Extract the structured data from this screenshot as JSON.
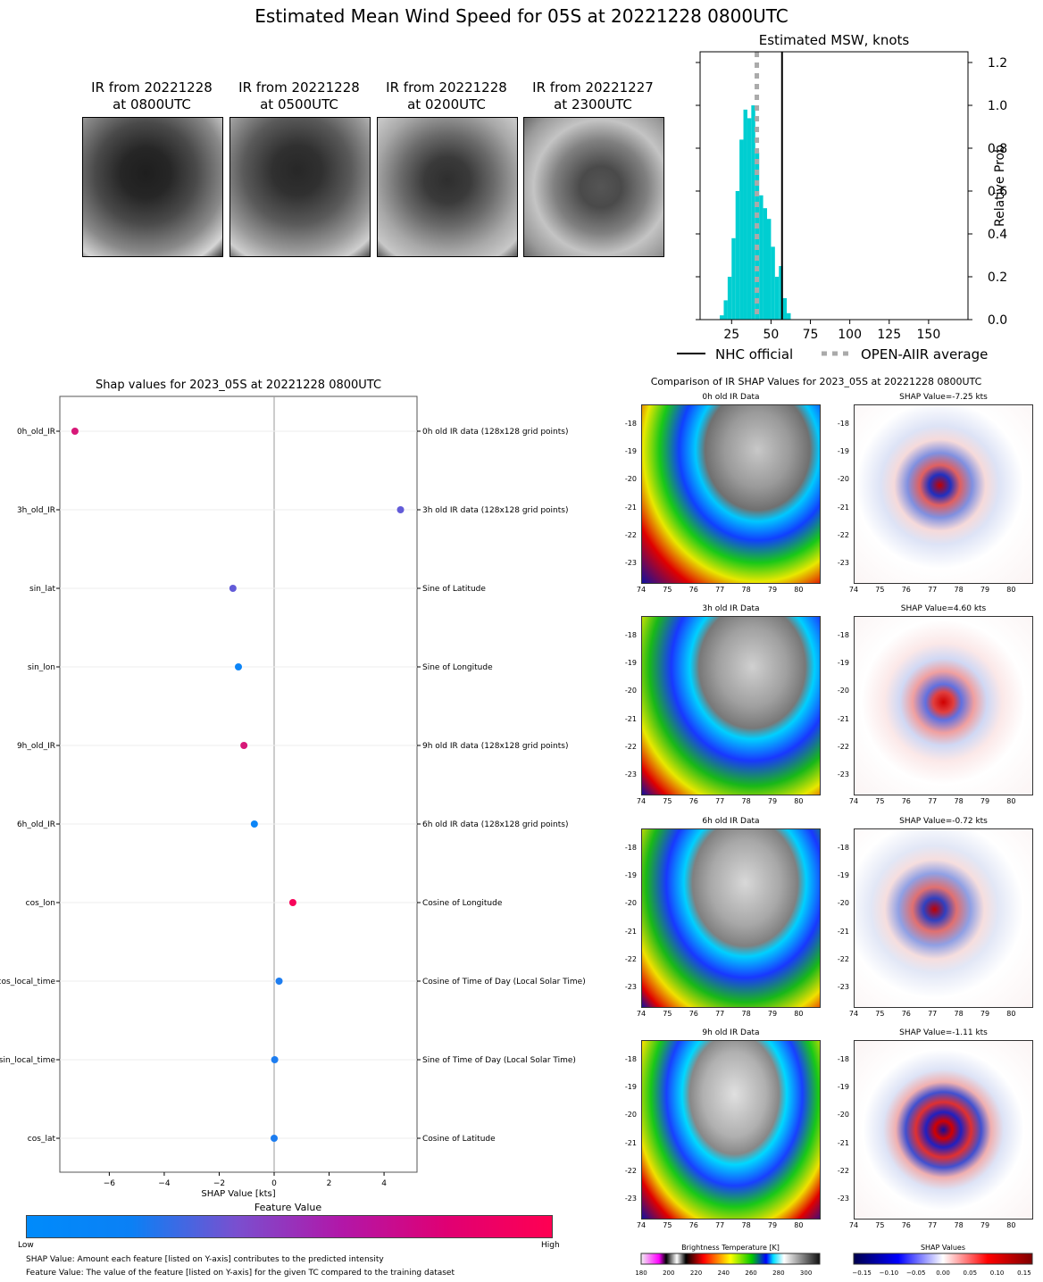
{
  "page_title": "Estimated Mean Wind Speed for 05S at 20221228 0800UTC",
  "ir_captions": [
    "IR from 20221228\nat 0800UTC",
    "IR from 20221228\nat 0500UTC",
    "IR from 20221228\nat 0200UTC",
    "IR from 20221227\nat 2300UTC"
  ],
  "legend": {
    "nhc": "NHC official",
    "openaiir": "OPEN-AIIR average"
  },
  "colorbar": {
    "title": "Feature Value",
    "low": "Low",
    "high": "High"
  },
  "notes": [
    "SHAP Value: Amount each feature [listed on Y-axis] contributes to the predicted intensity",
    "Feature Value: The value of the feature [listed on Y-axis] for the given TC compared to the training dataset"
  ],
  "comparison_title": "Comparison of IR SHAP Values for 2023_05S at 20221228 0800UTC",
  "ir_rows": [
    {
      "left_title": "0h old IR Data",
      "right_title": "SHAP Value=-7.25 kts"
    },
    {
      "left_title": "3h old IR Data",
      "right_title": "SHAP Value=4.60 kts"
    },
    {
      "left_title": "6h old IR Data",
      "right_title": "SHAP Value=-0.72 kts"
    },
    {
      "left_title": "9h old IR Data",
      "right_title": "SHAP Value=-1.11 kts"
    }
  ],
  "map_axes": {
    "x_ticks": [
      "74",
      "75",
      "76",
      "77",
      "78",
      "79",
      "80"
    ],
    "y_ticks": [
      "-18",
      "-19",
      "-20",
      "-21",
      "-22",
      "-23"
    ]
  },
  "bt_colorbar": {
    "title": "Brightness Temperature [K]",
    "ticks": [
      "180",
      "200",
      "220",
      "240",
      "260",
      "280",
      "300"
    ]
  },
  "shap_colorbar": {
    "title": "SHAP Values",
    "ticks": [
      "−0.15",
      "−0.10",
      "−0.05",
      "0.00",
      "0.05",
      "0.10",
      "0.15"
    ]
  },
  "chart_data": [
    {
      "type": "bar",
      "title": "Estimated MSW, knots",
      "xlabel": "",
      "ylabel": "Relative Prob",
      "xlim": [
        5,
        175
      ],
      "ylim": [
        0,
        1.25
      ],
      "x_ticks": [
        25,
        50,
        75,
        100,
        125,
        150
      ],
      "y_ticks": [
        0.0,
        0.2,
        0.4,
        0.6,
        0.8,
        1.0,
        1.2
      ],
      "bin_width": 2.5,
      "bin_centers": [
        18.75,
        21.25,
        23.75,
        26.25,
        28.75,
        31.25,
        33.75,
        36.25,
        38.75,
        41.25,
        43.75,
        46.25,
        48.75,
        51.25,
        53.75,
        56.25,
        58.75,
        61.25
      ],
      "values": [
        0.02,
        0.09,
        0.2,
        0.38,
        0.6,
        0.84,
        0.98,
        0.94,
        1.0,
        0.78,
        0.58,
        0.52,
        0.47,
        0.34,
        0.2,
        0.25,
        0.1,
        0.03
      ],
      "nhc_official": 57,
      "openaiir_average": 41,
      "color": "#00CED1"
    },
    {
      "type": "scatter",
      "title": "Shap values for 2023_05S at 20221228 0800UTC",
      "xlabel": "SHAP Value [kts]",
      "xlim": [
        -7.8,
        5.2
      ],
      "x_ticks": [
        -6,
        -4,
        -2,
        0,
        2,
        4
      ],
      "features": [
        "0h_old_IR",
        "3h_old_IR",
        "sin_lat",
        "sin_lon",
        "9h_old_IR",
        "6h_old_IR",
        "cos_lon",
        "cos_local_time",
        "sin_local_time",
        "cos_lat"
      ],
      "descriptions": [
        "0h old IR data (128x128 grid points)",
        "3h old IR data (128x128 grid points)",
        "Sine of Latitude",
        "Sine of Longitude",
        "9h old IR data (128x128 grid points)",
        "6h old IR data (128x128 grid points)",
        "Cosine of Longitude",
        "Cosine of Time of Day (Local Solar Time)",
        "Sine of Time of Day (Local Solar Time)",
        "Cosine of Latitude"
      ],
      "values": [
        -7.25,
        4.6,
        -1.5,
        -1.3,
        -1.1,
        -0.72,
        0.68,
        0.18,
        0.02,
        0.0
      ],
      "feature_values": [
        0.85,
        0.4,
        0.4,
        0.05,
        0.85,
        0.05,
        0.97,
        0.12,
        0.12,
        0.12
      ],
      "colors": {
        "low": "#008bfb",
        "mid": "#7a4fcf",
        "high": "#ff0052"
      }
    }
  ]
}
